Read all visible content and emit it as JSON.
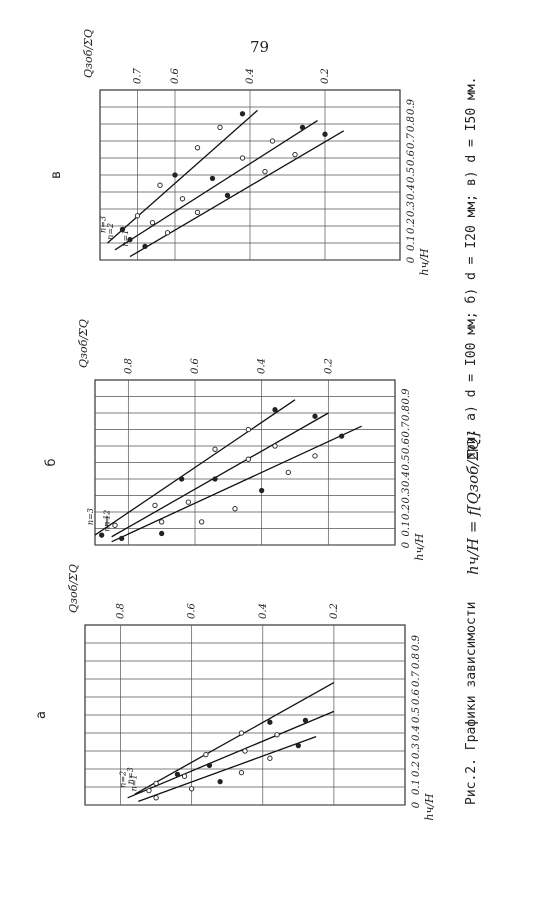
{
  "page_number": "79",
  "caption": {
    "prefix": "Рис.2. Графики зависимости",
    "formula": "hч/H = f[Qзоб/ΣQ]",
    "suffix": "при: а) d = I00 мм; б) d = I20 мм; в) d = I50 мм."
  },
  "chart_data": [
    {
      "type": "line",
      "panel_label": "а",
      "ylabel": "hч/H",
      "xlabel": "Qзоб/ΣQ",
      "y_ticks": [
        "0.9",
        "0.8",
        "0.7",
        "0.6",
        "0.5",
        "0.4",
        "0.3",
        "0.2",
        "0.1",
        "0"
      ],
      "x_ticks": [
        "0.2",
        "0.4",
        "0.6",
        "0.8"
      ],
      "xlim": [
        0,
        0.9
      ],
      "ylim": [
        0,
        1.0
      ],
      "series": [
        {
          "name": "n=1",
          "x": [
            0.25,
            0.75
          ],
          "y": [
            0.38,
            0.02
          ],
          "points": [
            [
              0.3,
              0.33
            ],
            [
              0.38,
              0.26
            ],
            [
              0.46,
              0.18
            ],
            [
              0.52,
              0.13
            ],
            [
              0.6,
              0.09
            ],
            [
              0.7,
              0.04
            ]
          ]
        },
        {
          "name": "n=2",
          "x": [
            0.2,
            0.78
          ],
          "y": [
            0.52,
            0.04
          ],
          "points": [
            [
              0.28,
              0.47
            ],
            [
              0.36,
              0.39
            ],
            [
              0.45,
              0.3
            ],
            [
              0.55,
              0.22
            ],
            [
              0.62,
              0.16
            ],
            [
              0.72,
              0.08
            ]
          ]
        },
        {
          "name": "n=3",
          "x": [
            0.2,
            0.76
          ],
          "y": [
            0.68,
            0.06
          ],
          "points": [
            [
              0.38,
              0.46
            ],
            [
              0.46,
              0.4
            ],
            [
              0.56,
              0.28
            ],
            [
              0.64,
              0.17
            ],
            [
              0.7,
              0.12
            ]
          ]
        }
      ]
    },
    {
      "type": "line",
      "panel_label": "б",
      "ylabel": "hч/H",
      "xlabel": "Qзоб/ΣQ",
      "y_ticks": [
        "0.9",
        "0.8",
        "0.7",
        "0.6",
        "0.5",
        "0.4",
        "0.3",
        "0.2",
        "0.1",
        "0"
      ],
      "x_ticks": [
        "0.2",
        "0.4",
        "0.6",
        "0.8"
      ],
      "xlim": [
        0,
        0.9
      ],
      "ylim": [
        0,
        1.0
      ],
      "series": [
        {
          "name": "n=1",
          "x": [
            0.1,
            0.85
          ],
          "y": [
            0.72,
            0.02
          ],
          "points": [
            [
              0.16,
              0.66
            ],
            [
              0.24,
              0.54
            ],
            [
              0.32,
              0.44
            ],
            [
              0.4,
              0.33
            ],
            [
              0.48,
              0.22
            ],
            [
              0.58,
              0.14
            ],
            [
              0.7,
              0.07
            ]
          ]
        },
        {
          "name": "n=2",
          "x": [
            0.2,
            0.85
          ],
          "y": [
            0.8,
            0.05
          ],
          "points": [
            [
              0.24,
              0.78
            ],
            [
              0.36,
              0.6
            ],
            [
              0.44,
              0.52
            ],
            [
              0.54,
              0.4
            ],
            [
              0.62,
              0.26
            ],
            [
              0.7,
              0.14
            ],
            [
              0.82,
              0.04
            ]
          ]
        },
        {
          "name": "n=3",
          "x": [
            0.3,
            0.9
          ],
          "y": [
            0.88,
            0.06
          ],
          "points": [
            [
              0.36,
              0.82
            ],
            [
              0.44,
              0.7
            ],
            [
              0.54,
              0.58
            ],
            [
              0.64,
              0.4
            ],
            [
              0.72,
              0.24
            ],
            [
              0.84,
              0.12
            ],
            [
              0.88,
              0.06
            ]
          ]
        }
      ]
    },
    {
      "type": "line",
      "panel_label": "в",
      "ylabel": "hч/H",
      "xlabel": "Qзоб/ΣQ",
      "y_ticks": [
        "0.9",
        "0.8",
        "0.7",
        "0.6",
        "0.5",
        "0.4",
        "0.3",
        "0.2",
        "0.1",
        "0"
      ],
      "x_ticks": [
        "0.2",
        "0.4",
        "0.6",
        "0.7"
      ],
      "xlim": [
        0,
        0.8
      ],
      "ylim": [
        0,
        1.0
      ],
      "series": [
        {
          "name": "n=1",
          "x": [
            0.15,
            0.72
          ],
          "y": [
            0.76,
            0.02
          ],
          "points": [
            [
              0.2,
              0.74
            ],
            [
              0.28,
              0.62
            ],
            [
              0.36,
              0.52
            ],
            [
              0.46,
              0.38
            ],
            [
              0.54,
              0.28
            ],
            [
              0.62,
              0.16
            ],
            [
              0.68,
              0.08
            ]
          ]
        },
        {
          "name": "n=2",
          "x": [
            0.22,
            0.76
          ],
          "y": [
            0.82,
            0.06
          ],
          "points": [
            [
              0.26,
              0.78
            ],
            [
              0.34,
              0.7
            ],
            [
              0.42,
              0.6
            ],
            [
              0.5,
              0.48
            ],
            [
              0.58,
              0.36
            ],
            [
              0.66,
              0.22
            ],
            [
              0.72,
              0.12
            ]
          ]
        },
        {
          "name": "n=3",
          "x": [
            0.38,
            0.78
          ],
          "y": [
            0.88,
            0.1
          ],
          "points": [
            [
              0.42,
              0.86
            ],
            [
              0.48,
              0.78
            ],
            [
              0.54,
              0.66
            ],
            [
              0.6,
              0.5
            ],
            [
              0.64,
              0.44
            ],
            [
              0.7,
              0.26
            ],
            [
              0.74,
              0.18
            ]
          ]
        }
      ]
    }
  ]
}
